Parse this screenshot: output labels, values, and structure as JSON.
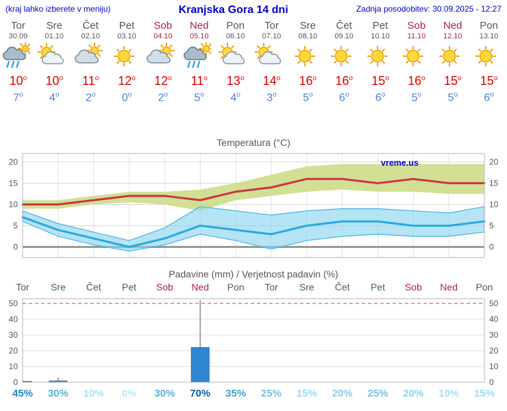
{
  "header": {
    "left_note": "(kraj lahko izberete v meniju)",
    "title": "Kranjska Gora 14 dni",
    "updated": "Zadnja posodobitev: 30.09.2025 - 12:27"
  },
  "watermark": "vreme.us",
  "colors": {
    "header_blue": "#0000cc",
    "weekday_text": "#555555",
    "weekend_text": "#aa2244",
    "high_temp": "#dd0000",
    "low_temp": "#4a7fd0",
    "temp_line": "#cc3344",
    "temp_band": "#ccdd88",
    "low_line": "#2aa7df",
    "low_band": "#88d4ee",
    "bar_fill": "#2e86d0",
    "dashed_top": "#ee7777"
  },
  "days": [
    {
      "name": "Tor",
      "date": "30.09",
      "weekend": false,
      "icon": "rain",
      "high": 10,
      "low": 7
    },
    {
      "name": "Sre",
      "date": "01.10",
      "weekend": false,
      "icon": "partly",
      "high": 10,
      "low": 4
    },
    {
      "name": "Čet",
      "date": "02.10",
      "weekend": false,
      "icon": "cloudy",
      "high": 11,
      "low": 2
    },
    {
      "name": "Pet",
      "date": "03.10",
      "weekend": false,
      "icon": "sunny",
      "high": 12,
      "low": 0
    },
    {
      "name": "Sob",
      "date": "04.10",
      "weekend": true,
      "icon": "cloudy",
      "high": 12,
      "low": 2
    },
    {
      "name": "Ned",
      "date": "05.10",
      "weekend": true,
      "icon": "rain",
      "high": 11,
      "low": 5
    },
    {
      "name": "Pon",
      "date": "06.10",
      "weekend": false,
      "icon": "partly",
      "high": 13,
      "low": 4
    },
    {
      "name": "Tor",
      "date": "07.10",
      "weekend": false,
      "icon": "partly",
      "high": 14,
      "low": 3
    },
    {
      "name": "Sre",
      "date": "08.10",
      "weekend": false,
      "icon": "sunny",
      "high": 16,
      "low": 5
    },
    {
      "name": "Čet",
      "date": "09.10",
      "weekend": false,
      "icon": "sunny",
      "high": 16,
      "low": 6
    },
    {
      "name": "Pet",
      "date": "10.10",
      "weekend": false,
      "icon": "sunny",
      "high": 15,
      "low": 6
    },
    {
      "name": "Sob",
      "date": "11.10",
      "weekend": true,
      "icon": "sunny",
      "high": 16,
      "low": 5
    },
    {
      "name": "Ned",
      "date": "12.10",
      "weekend": true,
      "icon": "sunny",
      "high": 15,
      "low": 5
    },
    {
      "name": "Pon",
      "date": "13.10",
      "weekend": false,
      "icon": "sunny",
      "high": 15,
      "low": 6
    }
  ],
  "chart_data": [
    {
      "type": "line",
      "title": "Temperatura (°C)",
      "categories": [
        "Tor",
        "Sre",
        "Čet",
        "Pet",
        "Sob",
        "Ned",
        "Pon",
        "Tor",
        "Sre",
        "Čet",
        "Pet",
        "Sob",
        "Ned",
        "Pon"
      ],
      "ylim": [
        -2.5,
        22
      ],
      "yticks": [
        0,
        5,
        10,
        15,
        20
      ],
      "grid": true,
      "series": [
        {
          "name": "max-temp",
          "values": [
            10,
            10,
            11,
            12,
            12,
            11,
            13,
            14,
            16,
            16,
            15,
            16,
            15,
            15
          ]
        },
        {
          "name": "min-temp",
          "values": [
            7,
            4,
            2,
            0,
            2,
            5,
            4,
            3,
            5,
            6,
            6,
            5,
            5,
            6
          ]
        }
      ],
      "bands": [
        {
          "name": "max-temp-range",
          "upper": [
            11,
            11,
            12,
            13,
            13,
            13.5,
            15,
            17,
            19,
            19.5,
            19.5,
            19.5,
            19.5,
            19.5
          ],
          "lower": [
            9,
            9,
            10,
            10.5,
            10,
            8.5,
            11,
            12,
            13,
            13.5,
            13,
            13,
            12.5,
            12.5
          ]
        },
        {
          "name": "min-temp-range",
          "upper": [
            8.5,
            5.5,
            3.5,
            1.5,
            4.5,
            9.5,
            8.5,
            7.5,
            8.5,
            9,
            9,
            8.5,
            8,
            9.5
          ],
          "lower": [
            6,
            2.5,
            0.5,
            -1,
            0.5,
            3,
            1.5,
            -0.5,
            1.5,
            2.5,
            3,
            2.5,
            2.5,
            3.5
          ]
        }
      ]
    },
    {
      "type": "bar",
      "title": "Padavine (mm) / Verjetnost padavin (%)",
      "categories": [
        "Tor",
        "Sre",
        "Čet",
        "Pet",
        "Sob",
        "Ned",
        "Pon",
        "Tor",
        "Sre",
        "Čet",
        "Pet",
        "Sob",
        "Ned",
        "Pon"
      ],
      "weekend_flags": [
        false,
        false,
        false,
        false,
        true,
        true,
        false,
        false,
        false,
        false,
        false,
        true,
        true,
        false
      ],
      "ylim": [
        0,
        53
      ],
      "yticks": [
        0,
        10,
        20,
        30,
        40,
        50
      ],
      "values": [
        0.5,
        0.8,
        0,
        0,
        0,
        22,
        0,
        0,
        0,
        0,
        0,
        0,
        0,
        0
      ],
      "whisker_high": [
        1.5,
        3,
        0,
        0,
        0,
        52,
        0,
        0,
        0,
        0,
        0,
        0,
        0,
        0
      ],
      "probabilities": [
        45,
        30,
        10,
        0,
        30,
        70,
        35,
        25,
        15,
        20,
        25,
        20,
        10,
        15
      ],
      "prob_colors": [
        "#2186c8",
        "#56b2dd",
        "#a8e0f2",
        "#bfe9f6",
        "#56b2dd",
        "#0f5fa8",
        "#3ba0d4",
        "#74c3e6",
        "#9cdaf0",
        "#8ad0ec",
        "#74c3e6",
        "#8ad0ec",
        "#a8e0f2",
        "#9cdaf0"
      ]
    }
  ]
}
